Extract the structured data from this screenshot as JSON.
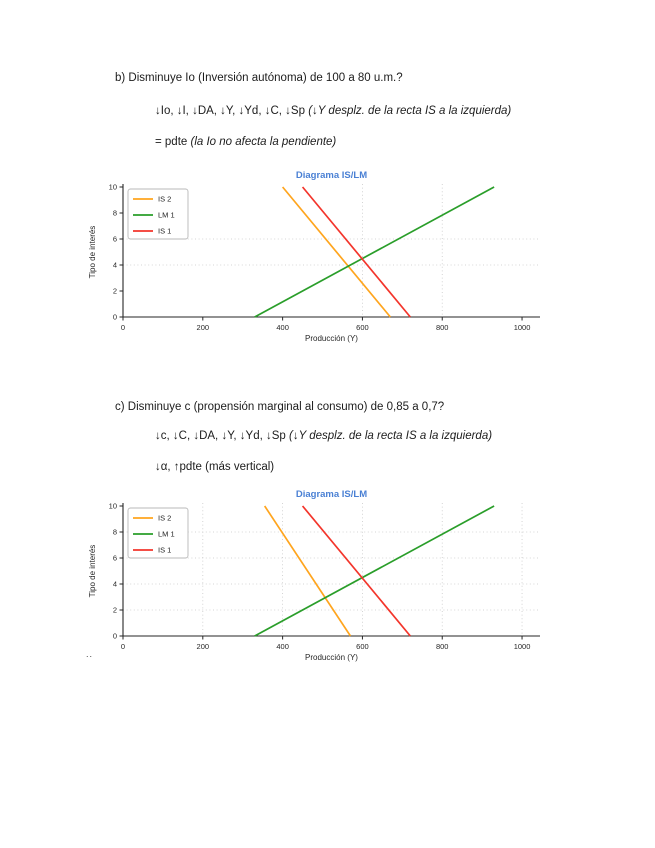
{
  "page": {
    "background": "#ffffff"
  },
  "sections": [
    {
      "heading": "b) Disminuye Io (Inversión autónoma) de 100 a 80 u.m.?",
      "result_line": {
        "normal": "↓Io, ↓I, ↓DA, ↓Y, ↓Yd, ↓C, ↓Sp ",
        "italic": "(↓Y desplz. de la recta IS a la izquierda)"
      },
      "note_line": {
        "normal": "= pdte ",
        "italic": "(la Io no afecta la pendiente)"
      }
    },
    {
      "heading": "c) Disminuye c (propensión marginal al consumo) de 0,85 a 0,7?",
      "result_line": {
        "normal": "↓c, ↓C, ↓DA, ↓Y, ↓Yd, ↓Sp  ",
        "italic": "(↓Y desplz. de la recta IS a la izquierda)"
      },
      "note_line": {
        "normal": "↓α, ↑pdte (más vertical)",
        "italic": ""
      }
    }
  ],
  "footer_mark": "..",
  "chart_colors": {
    "title": "#4a80d4",
    "axis": "#262626",
    "grid": "#c9c9c9",
    "legend_border": "#b8b8b8"
  },
  "chart_data": [
    {
      "type": "line",
      "title": "Diagrama IS/LM",
      "xlabel": "Producción (Y)",
      "ylabel": "Tipo de interés",
      "xlim": [
        0,
        1045
      ],
      "ylim": [
        0,
        10
      ],
      "xticks": [
        0,
        200,
        400,
        600,
        800,
        1000
      ],
      "yticks": [
        0,
        2,
        4,
        6,
        8,
        10
      ],
      "grid": {
        "h": [
          4,
          6
        ],
        "v": [
          600,
          800
        ]
      },
      "legend_position": "upper left",
      "series": [
        {
          "name": "IS 2",
          "color": "#ffa51e",
          "points": [
            [
              400,
              10
            ],
            [
              670,
              0
            ]
          ]
        },
        {
          "name": "LM 1",
          "color": "#2a9e2a",
          "points": [
            [
              330,
              0
            ],
            [
              930,
              10
            ]
          ]
        },
        {
          "name": "IS 1",
          "color": "#f3352b",
          "points": [
            [
              450,
              10
            ],
            [
              720,
              0
            ]
          ]
        }
      ]
    },
    {
      "type": "line",
      "title": "Diagrama IS/LM",
      "xlabel": "Producción (Y)",
      "ylabel": "Tipo de interés",
      "xlim": [
        0,
        1045
      ],
      "ylim": [
        0,
        10
      ],
      "xticks": [
        0,
        200,
        400,
        600,
        800,
        1000
      ],
      "yticks": [
        0,
        2,
        4,
        6,
        8,
        10
      ],
      "grid": {
        "h": [
          2,
          4,
          6,
          8
        ],
        "v": [
          200,
          400,
          600,
          800,
          1000
        ]
      },
      "legend_position": "upper left",
      "series": [
        {
          "name": "IS 2",
          "color": "#ffa51e",
          "points": [
            [
              355,
              10
            ],
            [
              570,
              0
            ]
          ]
        },
        {
          "name": "LM 1",
          "color": "#2a9e2a",
          "points": [
            [
              330,
              0
            ],
            [
              930,
              10
            ]
          ]
        },
        {
          "name": "IS 1",
          "color": "#f3352b",
          "points": [
            [
              450,
              10
            ],
            [
              720,
              0
            ]
          ]
        }
      ]
    }
  ]
}
